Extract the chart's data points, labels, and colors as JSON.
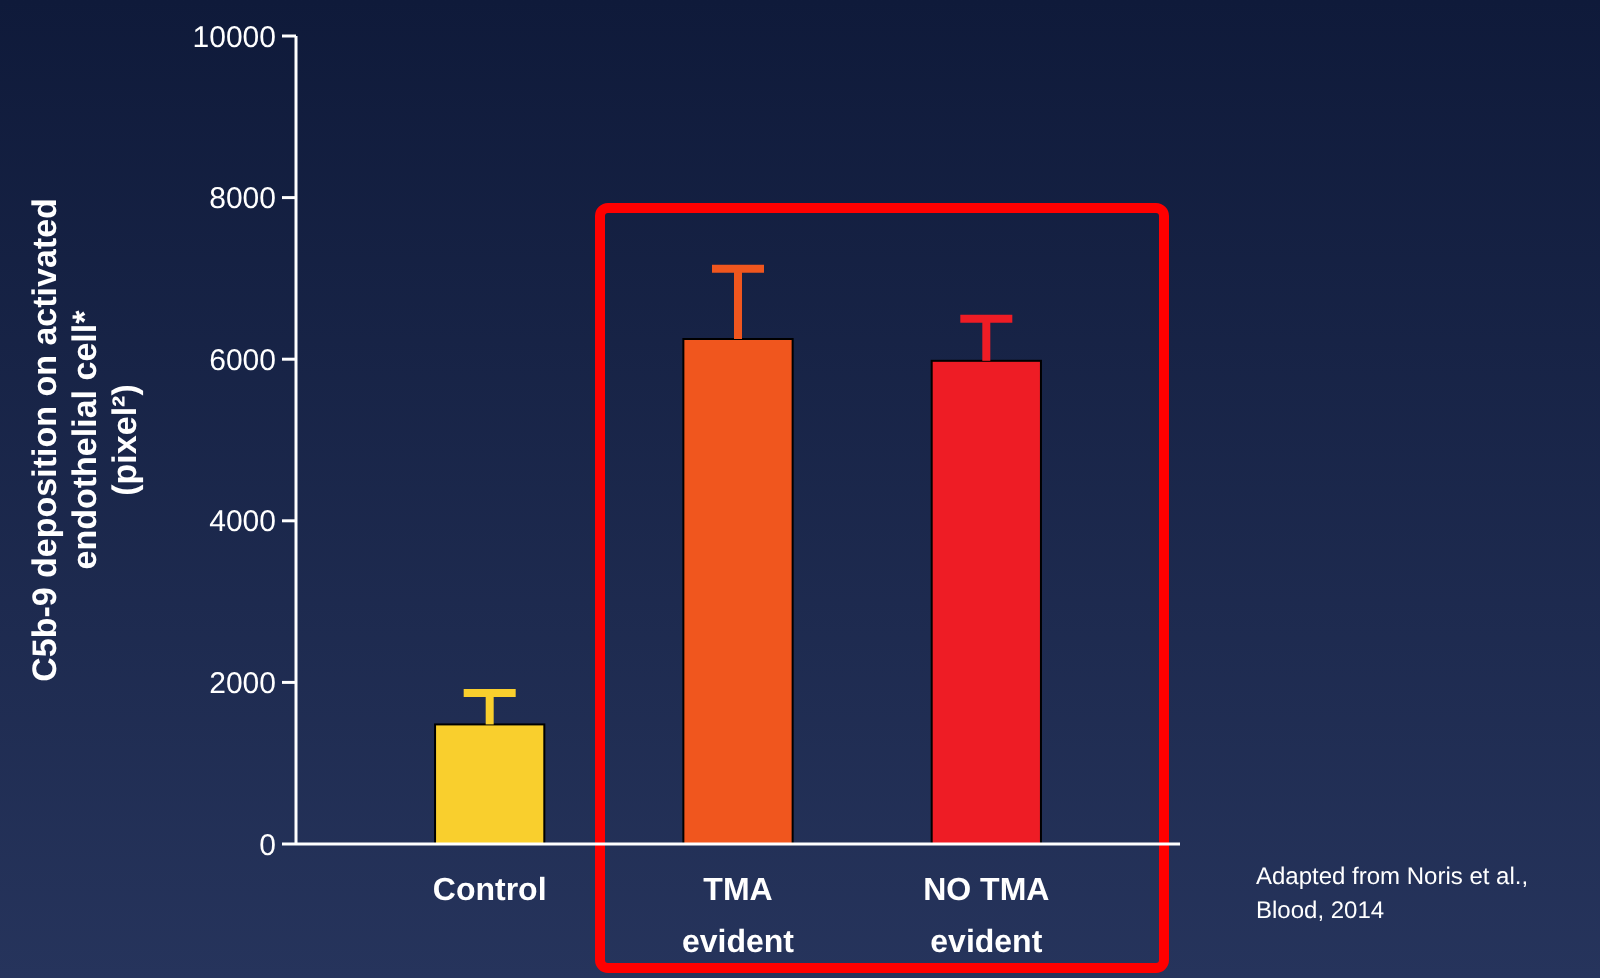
{
  "chart_data": {
    "type": "bar",
    "ylabel": "C5b-9 deposition on activated\nendothelial cell*\n(pixel²)",
    "categories": [
      "Control",
      "TMA evident",
      "NO TMA evident"
    ],
    "values": [
      1480,
      6250,
      5980
    ],
    "colors": [
      "#f9cf2d",
      "#f0561e",
      "#ee1c25"
    ],
    "errors": [
      [
        1480,
        1870
      ],
      [
        6250,
        7120
      ],
      [
        5980,
        6500
      ]
    ],
    "ylim": [
      0,
      10000
    ],
    "yticks": [
      0,
      2000,
      4000,
      6000,
      8000,
      10000
    ],
    "annotations": [
      "Adapted from Noris et al., Blood, 2014"
    ]
  }
}
